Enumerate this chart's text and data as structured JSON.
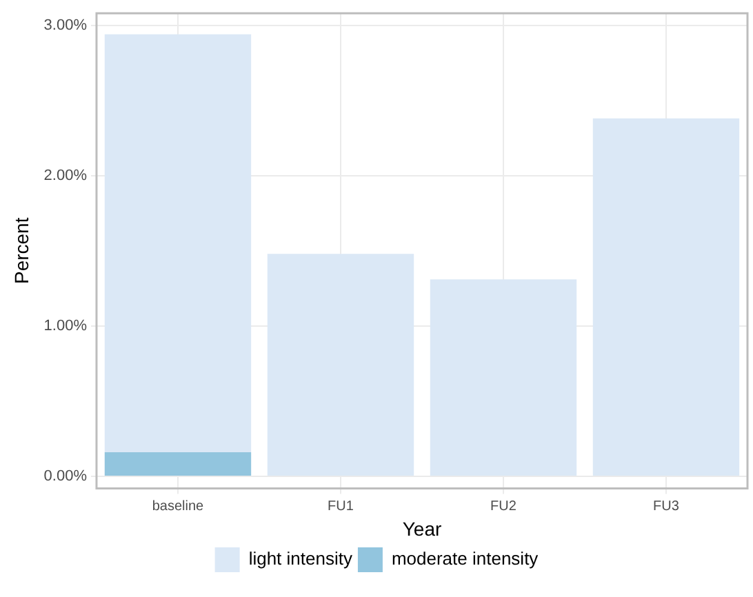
{
  "chart_data": {
    "type": "bar",
    "xlabel": "Year",
    "ylabel": "Percent",
    "categories": [
      "baseline",
      "FU1",
      "FU2",
      "FU3"
    ],
    "stacked": true,
    "series": [
      {
        "name": "moderate intensity",
        "color": "#92c5de",
        "values": [
          0.16,
          null,
          null,
          null
        ]
      },
      {
        "name": "light intensity",
        "color": "#dbe8f6",
        "values": [
          2.78,
          1.48,
          1.31,
          2.38
        ]
      }
    ],
    "ylim": [
      -0.08,
      3.08
    ],
    "yticks": [
      {
        "value": 0,
        "label": "0.00%"
      },
      {
        "value": 1,
        "label": "1.00%"
      },
      {
        "value": 2,
        "label": "2.00%"
      },
      {
        "value": 3,
        "label": "3.00%"
      }
    ],
    "grid": true,
    "legend": "bottom"
  }
}
